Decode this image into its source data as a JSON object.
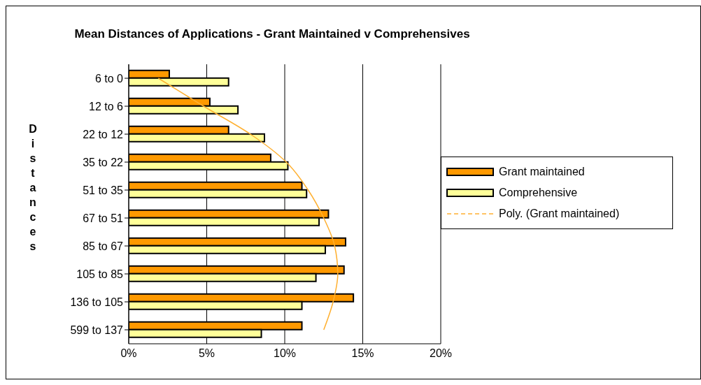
{
  "chart_data": {
    "type": "bar",
    "orientation": "horizontal",
    "title": "Mean Distances of Applications - Grant Maintained v Comprehensives",
    "ylabel": "Distances",
    "categories": [
      "6 to 0",
      "12 to 6",
      "22 to 12",
      "35 to 22",
      "51 to 35",
      "67 to 51",
      "85 to 67",
      "105 to 85",
      "136 to 105",
      "599 to 137"
    ],
    "series": [
      {
        "name": "Grant maintained",
        "color": "#ff9900",
        "values": [
          2.6,
          5.2,
          6.4,
          9.1,
          11.1,
          12.8,
          13.9,
          13.8,
          14.4,
          11.1
        ]
      },
      {
        "name": "Comprehensive",
        "color": "#ffff99",
        "values": [
          6.4,
          7.0,
          8.7,
          10.2,
          11.4,
          12.2,
          12.6,
          12.0,
          11.1,
          8.5
        ]
      },
      {
        "name": "Poly. (Grant maintained)",
        "type": "line",
        "color": "#ffb030",
        "values": [
          1.9,
          4.8,
          7.8,
          10.1,
          11.5,
          12.5,
          13.2,
          13.4,
          13.1,
          12.5
        ]
      }
    ],
    "xlim": [
      0,
      20
    ],
    "xticks": [
      {
        "value": 0,
        "label": "0%"
      },
      {
        "value": 5,
        "label": "5%"
      },
      {
        "value": 10,
        "label": "10%"
      },
      {
        "value": 15,
        "label": "15%"
      },
      {
        "value": 20,
        "label": "20%"
      }
    ],
    "grid": "x",
    "legend": "right",
    "marker": "none"
  }
}
